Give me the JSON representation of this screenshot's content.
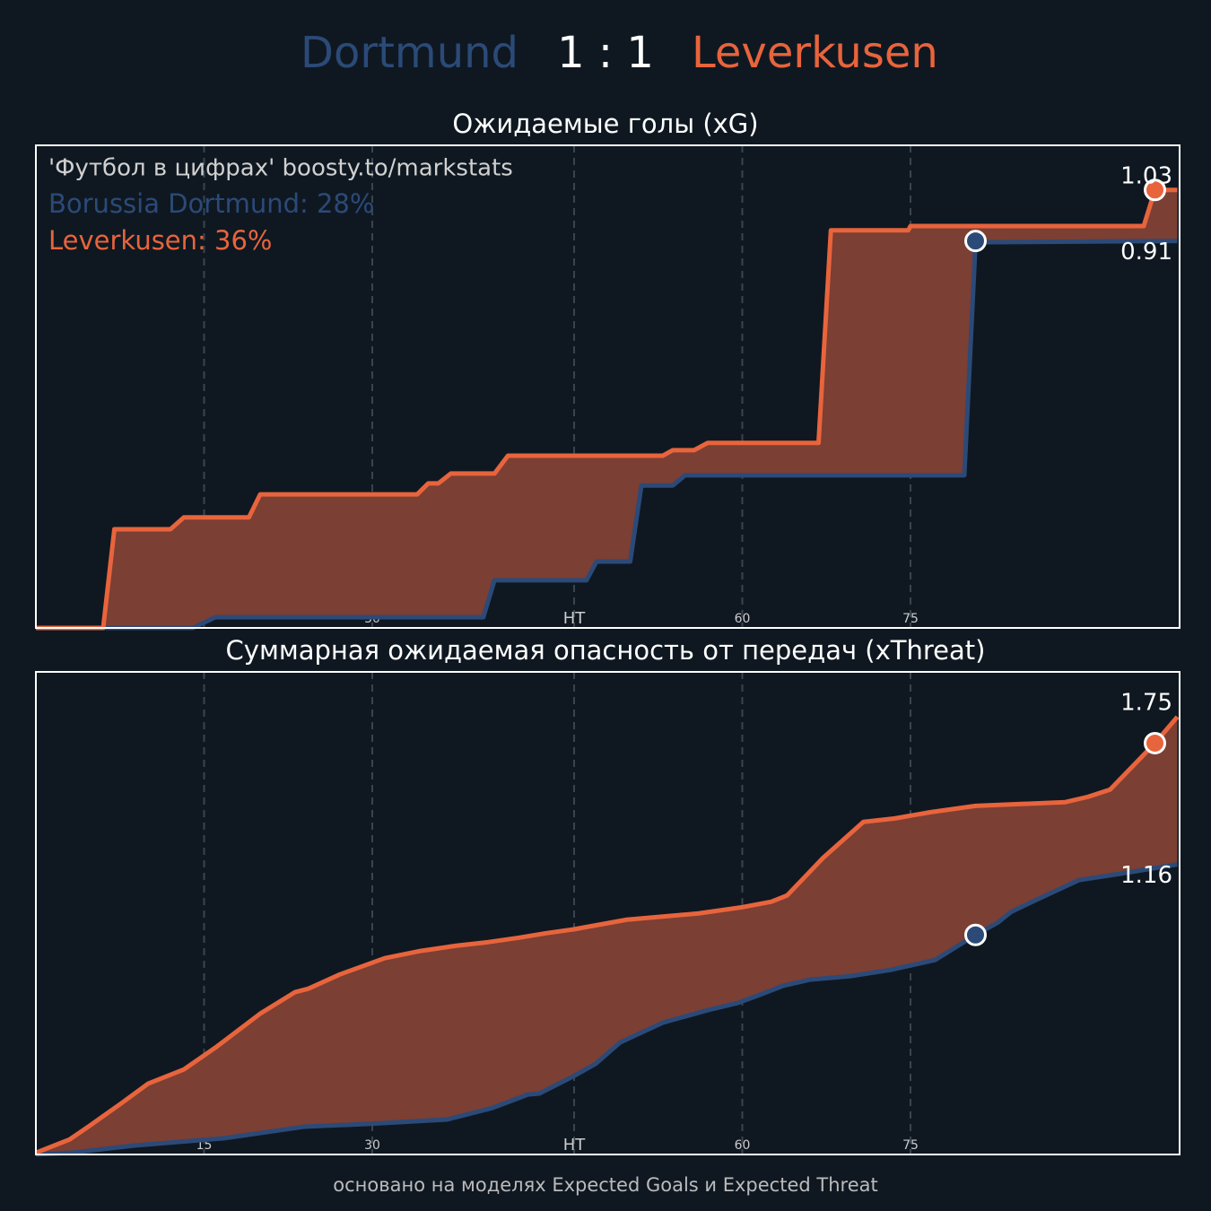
{
  "header": {
    "home": "Dortmund",
    "score": "1 : 1",
    "away": "Leverkusen"
  },
  "footnote": "основано на моделях Expected Goals и Expected Threat",
  "chart_data": [
    {
      "type": "line",
      "title": "Ожидаемые голы (xG)",
      "annotations": [
        {
          "text": "'Футбол в цифрах' boosty.to/markstats",
          "color": "#d0d0d0"
        },
        {
          "text": "Borussia Dortmund: 28%",
          "color": "#2b4a78"
        },
        {
          "text": "Leverkusen: 36%",
          "color": "#e8643c"
        }
      ],
      "xlim": [
        0,
        102
      ],
      "ylim": [
        0,
        1.135
      ],
      "xticks": [
        15,
        30,
        {
          "value": 48,
          "label": "HT"
        },
        {
          "value": 63,
          "label": "60"
        },
        {
          "value": 78,
          "label": "75"
        }
      ],
      "grid": true,
      "fill_color": "#7b3f33",
      "series": [
        {
          "name": "Borussia Dortmund",
          "color": "#2b4a78",
          "x": [
            0,
            14,
            16,
            39.9,
            40.9,
            49.1,
            50,
            53,
            54,
            56.8,
            57.9,
            82.8,
            83.8,
            101.8
          ],
          "values": [
            0,
            0,
            0.025,
            0.025,
            0.112,
            0.112,
            0.156,
            0.156,
            0.335,
            0.335,
            0.359,
            0.359,
            0.907,
            0.91
          ],
          "marker": {
            "x": 83.8,
            "value": 0.91
          }
        },
        {
          "name": "Leverkusen",
          "color": "#e8643c",
          "x": [
            0,
            6,
            7,
            12,
            13.2,
            19,
            20,
            34,
            35,
            35.9,
            37,
            40.9,
            42.1,
            55.9,
            56.8,
            58.7,
            59.9,
            69.8,
            70.9,
            77.8,
            78,
            98.8,
            99.8,
            101.8
          ],
          "values": [
            0,
            0,
            0.232,
            0.232,
            0.26,
            0.26,
            0.314,
            0.314,
            0.34,
            0.34,
            0.363,
            0.363,
            0.405,
            0.405,
            0.418,
            0.418,
            0.435,
            0.435,
            0.935,
            0.935,
            0.945,
            0.945,
            1.03,
            1.03
          ],
          "marker": {
            "x": 99.8,
            "value": 1.03
          }
        }
      ]
    },
    {
      "type": "line",
      "title": "Суммарная ожидаемая опасность от передач (xThreat)",
      "xlim": [
        0,
        102
      ],
      "ylim": [
        0,
        1.93
      ],
      "xticks": [
        15,
        30,
        {
          "value": 48,
          "label": "HT"
        },
        {
          "value": 63,
          "label": "60"
        },
        {
          "value": 78,
          "label": "75"
        }
      ],
      "grid": true,
      "fill_color": "#7b3f33",
      "series": [
        {
          "name": "Borussia Dortmund",
          "color": "#2b4a78",
          "x": [
            0,
            3.2,
            8.8,
            16.8,
            23.9,
            29.5,
            36.7,
            40.7,
            43.9,
            44.9,
            47.9,
            49.9,
            52.1,
            55.9,
            59.9,
            62.6,
            64.3,
            66.6,
            69,
            72.6,
            76.2,
            80.2,
            83.8,
            85.8,
            87,
            89.4,
            93,
            96.6,
            101.8
          ],
          "values": [
            0,
            0.007,
            0.036,
            0.065,
            0.111,
            0.122,
            0.14,
            0.186,
            0.24,
            0.244,
            0.312,
            0.362,
            0.448,
            0.527,
            0.577,
            0.606,
            0.634,
            0.674,
            0.699,
            0.713,
            0.738,
            0.778,
            0.878,
            0.928,
            0.971,
            1.022,
            1.097,
            1.122,
            1.16
          ],
          "marker": {
            "x": 83.8,
            "value": 0.878
          }
        },
        {
          "name": "Leverkusen",
          "color": "#e8643c",
          "x": [
            0,
            3,
            4.8,
            7.6,
            10,
            13.2,
            16,
            20,
            23.1,
            24.3,
            27.1,
            31.1,
            34.3,
            37.5,
            40.3,
            43.1,
            45.5,
            47.9,
            52.7,
            59.1,
            63,
            65.6,
            67,
            70.2,
            73.8,
            76.6,
            79.8,
            83.8,
            91.8,
            93.8,
            95.8,
            99.8,
            101.8
          ],
          "values": [
            0.007,
            0.06,
            0.115,
            0.204,
            0.283,
            0.34,
            0.427,
            0.563,
            0.649,
            0.663,
            0.72,
            0.785,
            0.814,
            0.835,
            0.849,
            0.867,
            0.885,
            0.9,
            0.939,
            0.964,
            0.989,
            1.011,
            1.036,
            1.186,
            1.33,
            1.344,
            1.369,
            1.394,
            1.409,
            1.43,
            1.459,
            1.645,
            1.75
          ],
          "marker": {
            "x": 99.8,
            "value": 1.645
          }
        }
      ]
    }
  ]
}
